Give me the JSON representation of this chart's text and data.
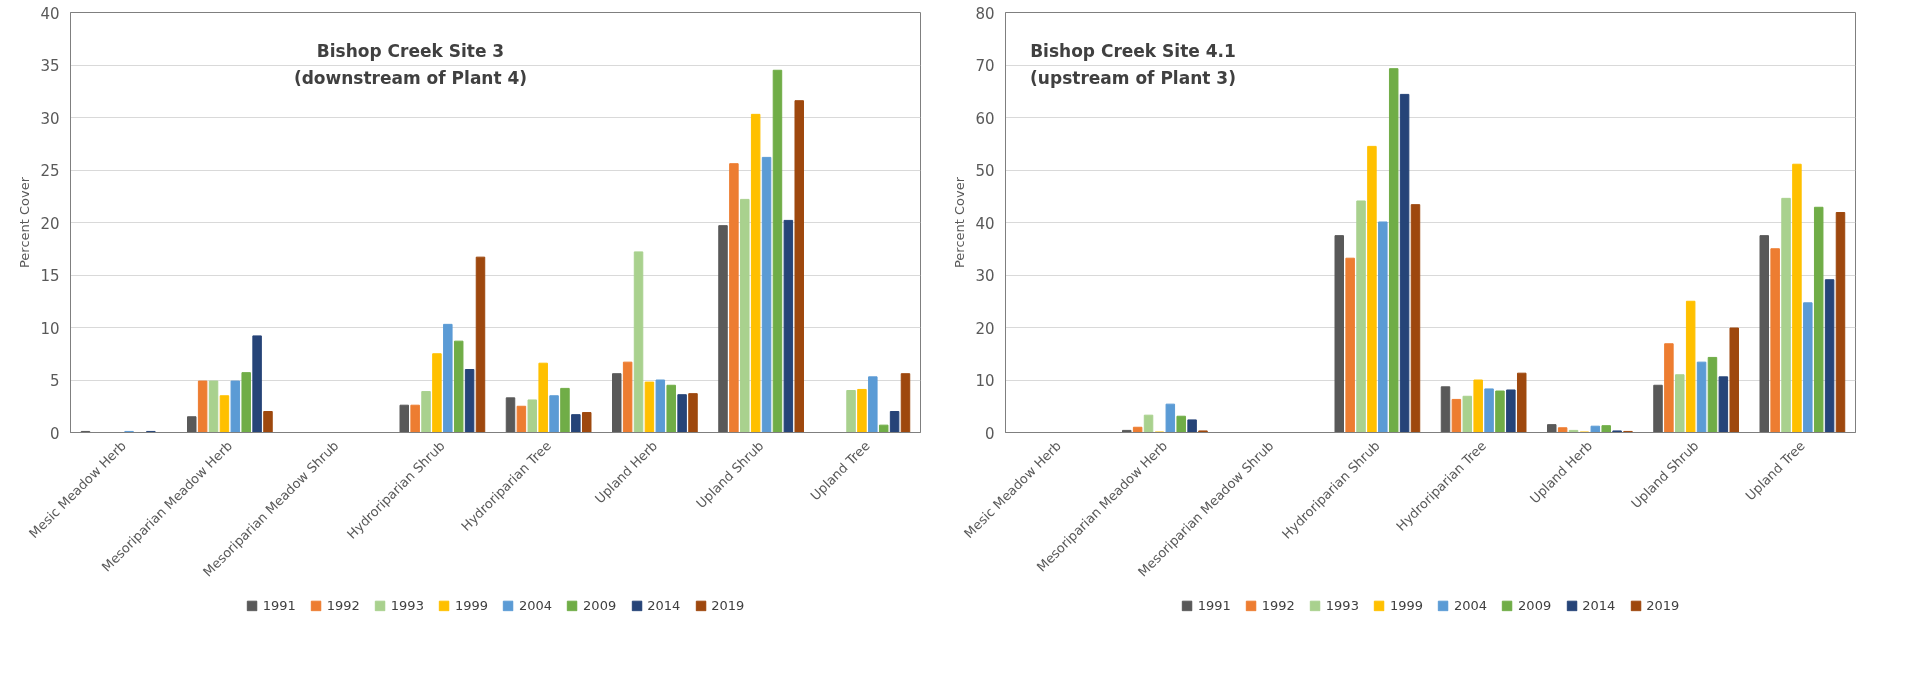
{
  "chart_data": [
    {
      "type": "bar",
      "title": "Bishop Creek Site 3",
      "subtitle": "(downstream of Plant 4)",
      "ylabel": "Percent Cover",
      "categories": [
        "Mesic Meadow Herb",
        "Mesoriparian Meadow Herb",
        "Mesoriparian Meadow Shrub",
        "Hydroriparian Shrub",
        "Hydroriparian Tree",
        "Upland Herb",
        "Upland Shrub",
        "Upland Tree"
      ],
      "ylim": [
        0,
        40
      ],
      "yticks": [
        0,
        5,
        10,
        15,
        20,
        25,
        30,
        35,
        40
      ],
      "grid": "y",
      "legend": "bottom",
      "series": [
        {
          "name": "1991",
          "color": "#595959",
          "values": [
            0.1,
            1.5,
            0,
            2.6,
            3.3,
            5.6,
            19.7,
            0
          ]
        },
        {
          "name": "1992",
          "color": "#ed7d31",
          "values": [
            0,
            4.9,
            0,
            2.6,
            2.5,
            6.7,
            25.6,
            0
          ]
        },
        {
          "name": "1993",
          "color": "#a9d18e",
          "values": [
            0,
            4.9,
            0,
            3.9,
            3.1,
            17.2,
            22.2,
            4.0
          ]
        },
        {
          "name": "1999",
          "color": "#ffc000",
          "values": [
            0,
            3.5,
            0,
            7.5,
            6.6,
            4.8,
            30.3,
            4.1
          ]
        },
        {
          "name": "2004",
          "color": "#5b9bd5",
          "values": [
            0.1,
            4.9,
            0,
            10.3,
            3.5,
            5.0,
            26.2,
            5.3
          ]
        },
        {
          "name": "2009",
          "color": "#70ad47",
          "values": [
            0,
            5.7,
            0,
            8.7,
            4.2,
            4.5,
            34.5,
            0.7
          ]
        },
        {
          "name": "2014",
          "color": "#264478",
          "values": [
            0.1,
            9.2,
            0,
            6.0,
            1.7,
            3.6,
            20.2,
            2.0
          ]
        },
        {
          "name": "2019",
          "color": "#9e480e",
          "values": [
            0,
            2.0,
            0,
            16.7,
            1.9,
            3.7,
            31.6,
            5.6
          ]
        }
      ]
    },
    {
      "type": "bar",
      "title": "Bishop Creek Site 4.1",
      "subtitle": "(upstream of Plant 3)",
      "ylabel": "Percent Cover",
      "categories": [
        "Mesic Meadow Herb",
        "Mesoriparian Meadow Herb",
        "Mesoriparian Meadow Shrub",
        "Hydroriparian Shrub",
        "Hydroriparian Tree",
        "Upland Herb",
        "Upland Shrub",
        "Upland Tree"
      ],
      "ylim": [
        0,
        80
      ],
      "yticks": [
        0,
        10,
        20,
        30,
        40,
        50,
        60,
        70,
        80
      ],
      "grid": "y",
      "legend": "bottom",
      "series": [
        {
          "name": "1991",
          "color": "#595959",
          "values": [
            0,
            0.4,
            0,
            37.5,
            8.7,
            1.5,
            9.0,
            37.5
          ]
        },
        {
          "name": "1992",
          "color": "#ed7d31",
          "values": [
            0,
            1.0,
            0,
            33.2,
            6.3,
            0.9,
            16.9,
            35.0
          ]
        },
        {
          "name": "1993",
          "color": "#a9d18e",
          "values": [
            0,
            3.3,
            0,
            44.1,
            6.9,
            0.4,
            11.0,
            44.6
          ]
        },
        {
          "name": "1999",
          "color": "#ffc000",
          "values": [
            0,
            0.1,
            0,
            54.5,
            10.0,
            0.1,
            25.0,
            51.1
          ]
        },
        {
          "name": "2004",
          "color": "#5b9bd5",
          "values": [
            0,
            5.4,
            0,
            40.1,
            8.3,
            1.2,
            13.4,
            24.7
          ]
        },
        {
          "name": "2009",
          "color": "#70ad47",
          "values": [
            0,
            3.1,
            0,
            69.3,
            7.9,
            1.3,
            14.3,
            42.9
          ]
        },
        {
          "name": "2014",
          "color": "#264478",
          "values": [
            0,
            2.4,
            0,
            64.4,
            8.1,
            0.3,
            10.6,
            29.1
          ]
        },
        {
          "name": "2019",
          "color": "#9e480e",
          "values": [
            0,
            0.3,
            0,
            43.4,
            11.3,
            0.2,
            19.9,
            41.9
          ]
        }
      ]
    }
  ]
}
